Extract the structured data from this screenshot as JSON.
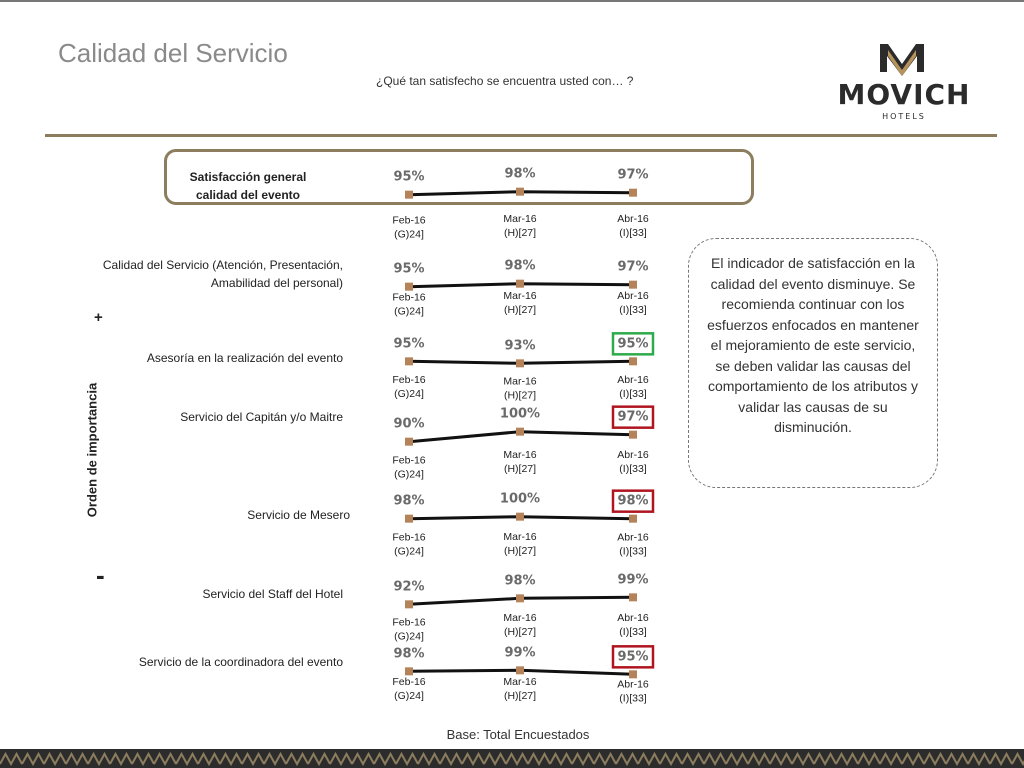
{
  "header": {
    "title": "Calidad del Servicio",
    "subtitle": "¿Qué tan satisfecho se encuentra usted con… ?",
    "logo_text": "MOVICH",
    "logo_subtext": "HOTELS"
  },
  "axis": {
    "label": "Orden de importancia",
    "plus": "+",
    "minus": "-"
  },
  "note": "El indicador de satisfacción en la calidad del evento disminuye. Se recomienda continuar con los esfuerzos enfocados en mantener el mejoramiento de este servicio, se deben validar las causas del comportamiento de los atributos y validar las causas de su disminución.",
  "footer": {
    "base": "Base: Total Encuestados"
  },
  "colors": {
    "accent": "#8b7d5e",
    "marker": "#b5835a",
    "line": "#111111",
    "box_green": "#2eaa4a",
    "box_red": "#b0151f"
  },
  "chart_data": {
    "type": "line",
    "periods": [
      {
        "label": "Feb-16",
        "sub": "(G)24]"
      },
      {
        "label": "Mar-16",
        "sub": "(H)[27]"
      },
      {
        "label": "Abr-16",
        "sub": "(I)[33]"
      }
    ],
    "series": [
      {
        "name": "Satisfacción general calidad del evento",
        "values": [
          95,
          98,
          97
        ],
        "highlight": null
      },
      {
        "name": "Calidad del Servicio (Atención, Presentación, Amabilidad del personal)",
        "values": [
          95,
          98,
          97
        ],
        "highlight": null
      },
      {
        "name": "Asesoría en la realización del evento",
        "values": [
          95,
          93,
          95
        ],
        "highlight": "green"
      },
      {
        "name": "Servicio del Capitán y/o Maitre",
        "values": [
          90,
          100,
          97
        ],
        "highlight": "red"
      },
      {
        "name": "Servicio  de Mesero",
        "values": [
          98,
          100,
          98
        ],
        "highlight": "red"
      },
      {
        "name": "Servicio del Staff del Hotel",
        "values": [
          92,
          98,
          99
        ],
        "highlight": null
      },
      {
        "name": "Servicio de la coordinadora del evento",
        "values": [
          98,
          99,
          95
        ],
        "highlight": "red"
      }
    ],
    "unit": "%"
  }
}
